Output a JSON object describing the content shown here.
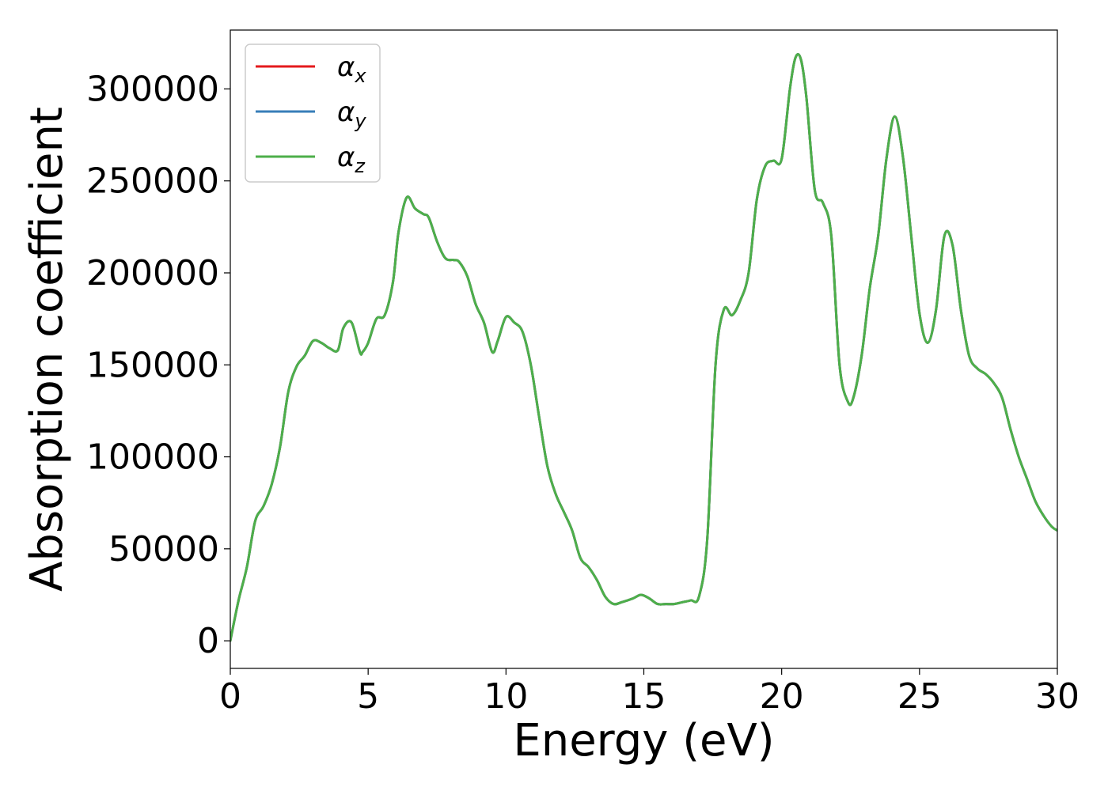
{
  "chart_data": {
    "type": "line",
    "xlabel": "Energy (eV)",
    "ylabel": "Absorption coefficient",
    "xlim": [
      0,
      30
    ],
    "ylim": [
      -15000,
      332000
    ],
    "xticks": [
      0,
      5,
      10,
      15,
      20,
      25,
      30
    ],
    "yticks": [
      0,
      50000,
      100000,
      150000,
      200000,
      250000,
      300000
    ],
    "grid": false,
    "legend_position": "top-left",
    "legend": [
      {
        "base": "α",
        "sub": "x",
        "color": "#e41a1c"
      },
      {
        "base": "α",
        "sub": "y",
        "color": "#377eb8"
      },
      {
        "base": "α",
        "sub": "z",
        "color": "#4daf4a"
      }
    ],
    "series": [
      {
        "name": "αx",
        "color": "#e41a1c",
        "x": [
          0,
          0.3,
          0.6,
          0.9,
          1.2,
          1.5,
          1.8,
          2.1,
          2.4,
          2.7,
          3.0,
          3.3,
          3.6,
          3.9,
          4.1,
          4.4,
          4.7,
          4.8,
          5.0,
          5.3,
          5.6,
          5.9,
          6.1,
          6.4,
          6.7,
          7.0,
          7.2,
          7.5,
          7.8,
          8.1,
          8.3,
          8.6,
          8.9,
          9.2,
          9.5,
          9.7,
          10.0,
          10.3,
          10.6,
          10.9,
          11.2,
          11.5,
          11.8,
          12.1,
          12.4,
          12.7,
          13.0,
          13.3,
          13.6,
          13.9,
          14.2,
          14.6,
          14.9,
          15.2,
          15.5,
          15.8,
          16.1,
          16.4,
          16.7,
          17.0,
          17.3,
          17.6,
          17.9,
          18.2,
          18.5,
          18.8,
          19.1,
          19.4,
          19.7,
          20.0,
          20.3,
          20.5,
          20.7,
          20.9,
          21.2,
          21.5,
          21.8,
          22.1,
          22.4,
          22.6,
          22.9,
          23.2,
          23.5,
          23.8,
          24.1,
          24.4,
          24.7,
          25.0,
          25.3,
          25.6,
          25.9,
          26.2,
          26.5,
          26.8,
          27.1,
          27.4,
          27.7,
          28.0,
          28.3,
          28.6,
          28.9,
          29.2,
          29.5,
          29.8,
          30.0
        ],
        "y": [
          0,
          22000,
          40000,
          65000,
          73000,
          85000,
          105000,
          135000,
          149000,
          155000,
          163000,
          162000,
          159000,
          158000,
          170000,
          173000,
          157000,
          157000,
          162000,
          175000,
          177000,
          195000,
          222000,
          241000,
          235000,
          232000,
          230000,
          217000,
          208000,
          207000,
          206000,
          198000,
          183000,
          173000,
          157000,
          163000,
          176000,
          173000,
          168000,
          150000,
          122000,
          95000,
          80000,
          70000,
          60000,
          45000,
          40000,
          33000,
          24000,
          20000,
          21000,
          23000,
          25000,
          23000,
          20000,
          20000,
          20000,
          21000,
          22000,
          24000,
          55000,
          150000,
          180000,
          177000,
          185000,
          200000,
          240000,
          258000,
          261000,
          262000,
          300000,
          317000,
          316000,
          295000,
          245000,
          238000,
          220000,
          150000,
          130000,
          132000,
          155000,
          192000,
          220000,
          262000,
          285000,
          263000,
          220000,
          178000,
          162000,
          180000,
          220000,
          215000,
          180000,
          155000,
          148000,
          145000,
          140000,
          132000,
          115000,
          100000,
          88000,
          76000,
          68000,
          62000,
          60000
        ]
      },
      {
        "name": "αy",
        "color": "#377eb8",
        "x": [
          0,
          0.3,
          0.6,
          0.9,
          1.2,
          1.5,
          1.8,
          2.1,
          2.4,
          2.7,
          3.0,
          3.3,
          3.6,
          3.9,
          4.1,
          4.4,
          4.7,
          4.8,
          5.0,
          5.3,
          5.6,
          5.9,
          6.1,
          6.4,
          6.7,
          7.0,
          7.2,
          7.5,
          7.8,
          8.1,
          8.3,
          8.6,
          8.9,
          9.2,
          9.5,
          9.7,
          10.0,
          10.3,
          10.6,
          10.9,
          11.2,
          11.5,
          11.8,
          12.1,
          12.4,
          12.7,
          13.0,
          13.3,
          13.6,
          13.9,
          14.2,
          14.6,
          14.9,
          15.2,
          15.5,
          15.8,
          16.1,
          16.4,
          16.7,
          17.0,
          17.3,
          17.6,
          17.9,
          18.2,
          18.5,
          18.8,
          19.1,
          19.4,
          19.7,
          20.0,
          20.3,
          20.5,
          20.7,
          20.9,
          21.2,
          21.5,
          21.8,
          22.1,
          22.4,
          22.6,
          22.9,
          23.2,
          23.5,
          23.8,
          24.1,
          24.4,
          24.7,
          25.0,
          25.3,
          25.6,
          25.9,
          26.2,
          26.5,
          26.8,
          27.1,
          27.4,
          27.7,
          28.0,
          28.3,
          28.6,
          28.9,
          29.2,
          29.5,
          29.8,
          30.0
        ],
        "y": [
          0,
          22000,
          40000,
          65000,
          73000,
          85000,
          105000,
          135000,
          149000,
          155000,
          163000,
          162000,
          159000,
          158000,
          170000,
          173000,
          157000,
          157000,
          162000,
          175000,
          177000,
          195000,
          222000,
          241000,
          235000,
          232000,
          230000,
          217000,
          208000,
          207000,
          206000,
          198000,
          183000,
          173000,
          157000,
          163000,
          176000,
          173000,
          168000,
          150000,
          122000,
          95000,
          80000,
          70000,
          60000,
          45000,
          40000,
          33000,
          24000,
          20000,
          21000,
          23000,
          25000,
          23000,
          20000,
          20000,
          20000,
          21000,
          22000,
          24000,
          55000,
          150000,
          180000,
          177000,
          185000,
          200000,
          240000,
          258000,
          261000,
          262000,
          300000,
          317000,
          316000,
          295000,
          245000,
          238000,
          220000,
          150000,
          130000,
          132000,
          155000,
          192000,
          220000,
          262000,
          285000,
          263000,
          220000,
          178000,
          162000,
          180000,
          220000,
          215000,
          180000,
          155000,
          148000,
          145000,
          140000,
          132000,
          115000,
          100000,
          88000,
          76000,
          68000,
          62000,
          60000
        ]
      },
      {
        "name": "αz",
        "color": "#4daf4a",
        "x": [
          0,
          0.3,
          0.6,
          0.9,
          1.2,
          1.5,
          1.8,
          2.1,
          2.4,
          2.7,
          3.0,
          3.3,
          3.6,
          3.9,
          4.1,
          4.4,
          4.7,
          4.8,
          5.0,
          5.3,
          5.6,
          5.9,
          6.1,
          6.4,
          6.7,
          7.0,
          7.2,
          7.5,
          7.8,
          8.1,
          8.3,
          8.6,
          8.9,
          9.2,
          9.5,
          9.7,
          10.0,
          10.3,
          10.6,
          10.9,
          11.2,
          11.5,
          11.8,
          12.1,
          12.4,
          12.7,
          13.0,
          13.3,
          13.6,
          13.9,
          14.2,
          14.6,
          14.9,
          15.2,
          15.5,
          15.8,
          16.1,
          16.4,
          16.7,
          17.0,
          17.3,
          17.6,
          17.9,
          18.2,
          18.5,
          18.8,
          19.1,
          19.4,
          19.7,
          20.0,
          20.3,
          20.5,
          20.7,
          20.9,
          21.2,
          21.5,
          21.8,
          22.1,
          22.4,
          22.6,
          22.9,
          23.2,
          23.5,
          23.8,
          24.1,
          24.4,
          24.7,
          25.0,
          25.3,
          25.6,
          25.9,
          26.2,
          26.5,
          26.8,
          27.1,
          27.4,
          27.7,
          28.0,
          28.3,
          28.6,
          28.9,
          29.2,
          29.5,
          29.8,
          30.0
        ],
        "y": [
          0,
          22000,
          40000,
          65000,
          73000,
          85000,
          105000,
          135000,
          149000,
          155000,
          163000,
          162000,
          159000,
          158000,
          170000,
          173000,
          157000,
          157000,
          162000,
          175000,
          177000,
          195000,
          222000,
          241000,
          235000,
          232000,
          230000,
          217000,
          208000,
          207000,
          206000,
          198000,
          183000,
          173000,
          157000,
          163000,
          176000,
          173000,
          168000,
          150000,
          122000,
          95000,
          80000,
          70000,
          60000,
          45000,
          40000,
          33000,
          24000,
          20000,
          21000,
          23000,
          25000,
          23000,
          20000,
          20000,
          20000,
          21000,
          22000,
          24000,
          55000,
          150000,
          180000,
          177000,
          185000,
          200000,
          240000,
          258000,
          261000,
          262000,
          300000,
          317000,
          316000,
          295000,
          245000,
          238000,
          220000,
          150000,
          130000,
          132000,
          155000,
          192000,
          220000,
          262000,
          285000,
          263000,
          220000,
          178000,
          162000,
          180000,
          220000,
          215000,
          180000,
          155000,
          148000,
          145000,
          140000,
          132000,
          115000,
          100000,
          88000,
          76000,
          68000,
          62000,
          60000
        ]
      }
    ]
  }
}
